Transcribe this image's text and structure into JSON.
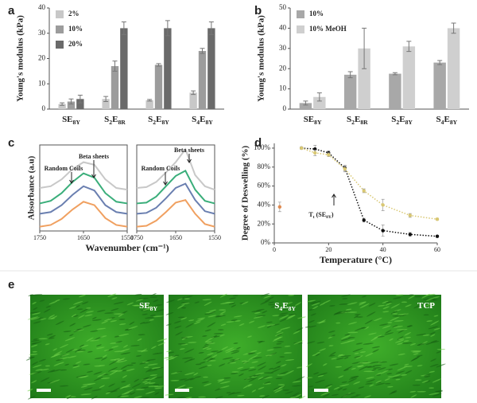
{
  "chart_data": [
    {
      "type": "bar",
      "label": "a",
      "ylabel": "Young's modulus (kPa)",
      "categories": [
        "SE8Y",
        "S2E8R",
        "S2E8Y",
        "S4E8Y"
      ],
      "series": [
        {
          "name": "2%",
          "color": "#c8c8c8",
          "values": [
            2,
            4,
            3.5,
            6.5
          ],
          "errors": [
            0.5,
            1,
            0.3,
            0.7
          ]
        },
        {
          "name": "10%",
          "color": "#9c9c9c",
          "values": [
            3,
            17,
            17.5,
            23
          ],
          "errors": [
            1,
            2,
            0.5,
            1
          ]
        },
        {
          "name": "20%",
          "color": "#6a6a6a",
          "values": [
            4,
            32,
            32,
            32
          ],
          "errors": [
            1.5,
            2.5,
            3,
            2.5
          ]
        }
      ],
      "ylim": [
        0,
        40
      ],
      "yticks": [
        0,
        10,
        20,
        30,
        40
      ],
      "grid": false,
      "legend": "upper-left"
    },
    {
      "type": "bar",
      "label": "b",
      "ylabel": "Young's modulus (kPa)",
      "categories": [
        "SE8Y",
        "S2E8R",
        "S2E8Y",
        "S4E8Y"
      ],
      "series": [
        {
          "name": "10%",
          "color": "#a8a8a8",
          "values": [
            3,
            17,
            17.5,
            23
          ],
          "errors": [
            1,
            1.5,
            0.5,
            1
          ]
        },
        {
          "name": "10% MeOH",
          "color": "#cfcfcf",
          "values": [
            6,
            30,
            31,
            40
          ],
          "errors": [
            2,
            10,
            2.5,
            2.5
          ]
        }
      ],
      "ylim": [
        0,
        50
      ],
      "yticks": [
        0,
        10,
        20,
        30,
        40,
        50
      ],
      "grid": false,
      "legend": "upper-left"
    },
    {
      "type": "line",
      "label": "c",
      "ylabel": "Absorbance (a.u)",
      "xlabel": "Wavenumber (cm⁻¹)",
      "annotations": [
        "Random Coils",
        "Beta sheets"
      ],
      "xlim": [
        1750,
        1550
      ],
      "xticks": [
        1750,
        1650,
        1550
      ],
      "ylim": [
        0,
        1
      ],
      "series": [
        {
          "color": "#f0a060",
          "x": [
            1750,
            1725,
            1700,
            1675,
            1650,
            1625,
            1600,
            1575,
            1550
          ],
          "values": [
            0.05,
            0.07,
            0.14,
            0.25,
            0.34,
            0.3,
            0.15,
            0.07,
            0.05
          ]
        },
        {
          "color": "#6a7fb0",
          "x": [
            1750,
            1725,
            1700,
            1675,
            1650,
            1625,
            1600,
            1575,
            1550
          ],
          "values": [
            0.2,
            0.22,
            0.3,
            0.42,
            0.52,
            0.47,
            0.3,
            0.22,
            0.2
          ]
        },
        {
          "color": "#3aae7a",
          "x": [
            1750,
            1725,
            1700,
            1675,
            1650,
            1625,
            1600,
            1575,
            1550
          ],
          "values": [
            0.32,
            0.35,
            0.44,
            0.57,
            0.67,
            0.62,
            0.44,
            0.34,
            0.32
          ]
        },
        {
          "color": "#c8c8c8",
          "x": [
            1750,
            1725,
            1700,
            1675,
            1650,
            1625,
            1600,
            1575,
            1550
          ],
          "values": [
            0.5,
            0.52,
            0.6,
            0.72,
            0.8,
            0.77,
            0.6,
            0.5,
            0.48
          ]
        }
      ]
    },
    {
      "type": "line",
      "annotations": [
        "Random Coils",
        "Beta sheets"
      ],
      "xlim": [
        1750,
        1550
      ],
      "xticks": [
        1750,
        1650,
        1550
      ],
      "ylim": [
        0,
        1
      ],
      "series": [
        {
          "color": "#f0a060",
          "x": [
            1750,
            1725,
            1700,
            1675,
            1650,
            1625,
            1600,
            1575,
            1550
          ],
          "values": [
            0.05,
            0.06,
            0.12,
            0.22,
            0.33,
            0.36,
            0.2,
            0.08,
            0.05
          ]
        },
        {
          "color": "#6a7fb0",
          "x": [
            1750,
            1725,
            1700,
            1675,
            1650,
            1625,
            1600,
            1575,
            1550
          ],
          "values": [
            0.2,
            0.21,
            0.27,
            0.38,
            0.5,
            0.55,
            0.36,
            0.23,
            0.2
          ]
        },
        {
          "color": "#3aae7a",
          "x": [
            1750,
            1725,
            1700,
            1675,
            1650,
            1625,
            1600,
            1575,
            1550
          ],
          "values": [
            0.32,
            0.33,
            0.4,
            0.52,
            0.64,
            0.7,
            0.48,
            0.35,
            0.32
          ]
        },
        {
          "color": "#c8c8c8",
          "x": [
            1750,
            1725,
            1700,
            1675,
            1650,
            1625,
            1600,
            1575,
            1550
          ],
          "values": [
            0.5,
            0.51,
            0.57,
            0.68,
            0.8,
            0.95,
            0.65,
            0.52,
            0.48
          ]
        }
      ]
    },
    {
      "type": "line",
      "label": "d",
      "ylabel": "Degree of Deswelling (%)",
      "xlabel": "Temperature (°C)",
      "annotations": [
        "Tt (SE8Y)"
      ],
      "linestyle": "dotted",
      "markers": true,
      "xlim": [
        0,
        60
      ],
      "xticks": [
        0,
        20,
        40,
        60
      ],
      "ylim": [
        0,
        105
      ],
      "yticks": [
        {
          "value": 0,
          "label": "0%"
        },
        {
          "value": 20,
          "label": "20%"
        },
        {
          "value": 40,
          "label": "40%"
        },
        {
          "value": 60,
          "label": "60%"
        },
        {
          "value": 80,
          "label": "80%"
        },
        {
          "value": 100,
          "label": "100%"
        }
      ],
      "series": [
        {
          "color": "#111111",
          "x": [
            10,
            15,
            20,
            26,
            33,
            40,
            50,
            60
          ],
          "values": [
            100,
            99,
            95,
            79,
            24,
            13,
            9,
            7
          ],
          "errors": [
            1,
            4,
            2,
            3,
            2,
            6,
            2,
            1
          ]
        },
        {
          "color": "#d9c873",
          "x": [
            10,
            15,
            20,
            26,
            33,
            40,
            50,
            60
          ],
          "values": [
            100,
            95,
            93,
            78,
            55,
            40,
            29,
            25
          ],
          "errors": [
            1,
            3,
            2,
            3,
            2,
            6,
            2,
            1
          ]
        },
        {
          "color": "#e08a50",
          "x": [
            2
          ],
          "values": [
            38
          ],
          "errors": [
            5
          ]
        }
      ]
    }
  ],
  "images": {
    "label": "e",
    "panels": [
      "SE8Y",
      "S4E8Y",
      "TCP"
    ]
  }
}
